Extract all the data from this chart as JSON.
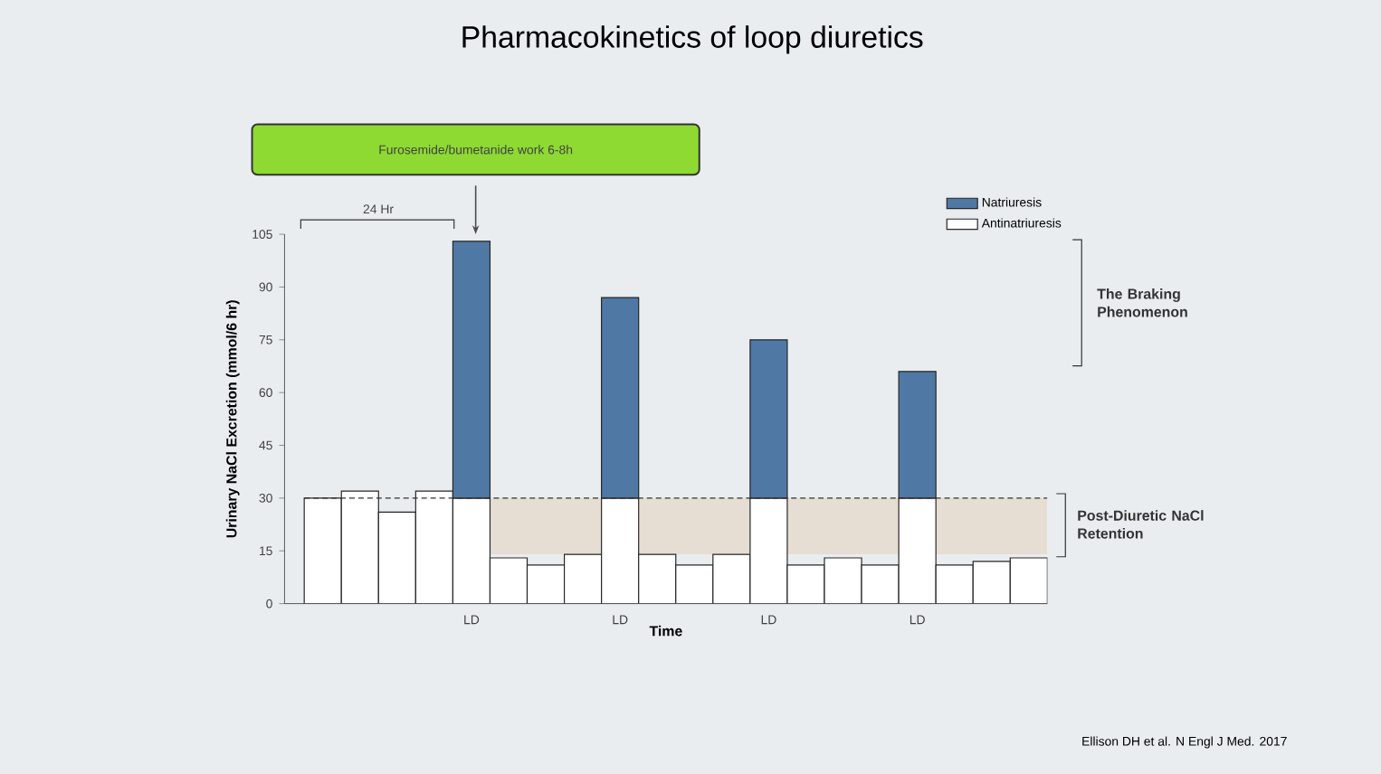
{
  "chart_data": {
    "type": "bar",
    "stacked": true,
    "title": "Pharmacokinetics of loop diuretics",
    "ylabel": "Urinary NaCl Excretion (mmol/6 hr)",
    "xlabel": "Time",
    "categories": [
      null,
      null,
      null,
      null,
      "LD",
      null,
      null,
      null,
      "LD",
      null,
      null,
      null,
      "LD",
      null,
      null,
      null,
      "LD",
      null,
      null,
      null
    ],
    "series": [
      {
        "name": "Antinatriuresis",
        "color": "#ffffff",
        "values": [
          30,
          32,
          26,
          32,
          30,
          13,
          11,
          14,
          30,
          14,
          11,
          14,
          30,
          11,
          13,
          11,
          30,
          11,
          12,
          13
        ]
      },
      {
        "name": "Natriuresis",
        "color": "#4f78a4",
        "values": [
          null,
          null,
          null,
          null,
          73,
          null,
          null,
          null,
          57,
          null,
          null,
          null,
          45,
          null,
          null,
          null,
          36,
          null,
          null,
          null
        ]
      }
    ],
    "ylim": [
      0,
      105
    ],
    "yticks": [
      0,
      15,
      30,
      45,
      60,
      75,
      90,
      105
    ],
    "legend": "top right",
    "ref_lines": [
      {
        "axis": "y",
        "value": 30,
        "line_style": "dashed",
        "color": "#333333"
      }
    ],
    "bands": [
      {
        "axis": "y",
        "from": 14,
        "to": 30,
        "label": "Post-Diuretic NaCl Retention",
        "color": "#e6ddd3"
      }
    ],
    "annotations": [
      "Furosemide/bumetanide work 6-8h",
      "24 Hr",
      "The Braking Phenomenon",
      "Ellison DH et al. N Engl J Med. 2017"
    ]
  }
}
